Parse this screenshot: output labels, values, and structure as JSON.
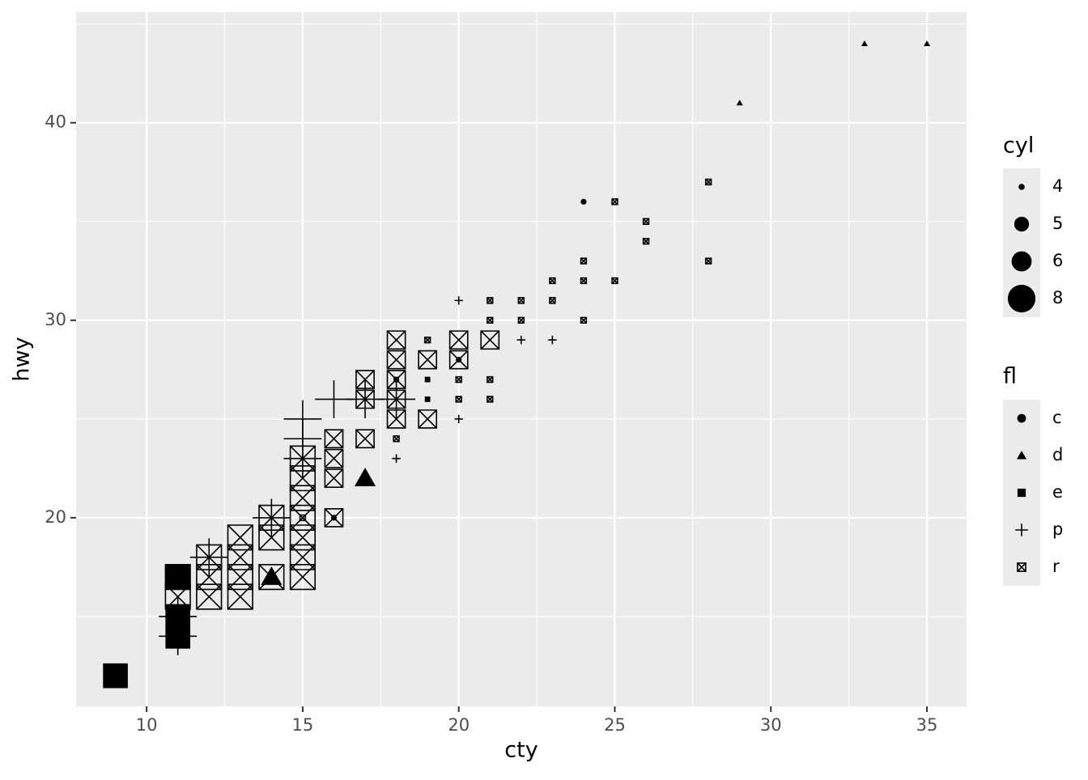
{
  "chart_data": {
    "type": "scatter",
    "x_label": "cty",
    "y_label": "hwy",
    "xlim": [
      7.74,
      36.27
    ],
    "ylim": [
      10.45,
      45.6
    ],
    "xticks": [
      10,
      15,
      20,
      25,
      30,
      35
    ],
    "yticks": [
      20,
      30,
      40
    ],
    "grid": true,
    "x": [
      33,
      35,
      29,
      28,
      24,
      25,
      26,
      26,
      28,
      24,
      23,
      24,
      25,
      20,
      21,
      22,
      23,
      21,
      22,
      24,
      21,
      22,
      23,
      20,
      20,
      20,
      20,
      21,
      20,
      21,
      20,
      19,
      19,
      19,
      19,
      19,
      18,
      18,
      18,
      18,
      18,
      18,
      18,
      18,
      17,
      17,
      17,
      17,
      16,
      16,
      16,
      16,
      16,
      16,
      17,
      18,
      15,
      15,
      15,
      15,
      15,
      15,
      15,
      15,
      15,
      15,
      14,
      14,
      14,
      14,
      13,
      13,
      13,
      13,
      12,
      12,
      12,
      11,
      11,
      11,
      11,
      11,
      11,
      11,
      9,
      14,
      12,
      15
    ],
    "y": [
      44,
      44,
      41,
      37,
      36,
      36,
      35,
      34,
      33,
      33,
      32,
      32,
      32,
      31,
      31,
      31,
      31,
      30,
      30,
      30,
      29,
      29,
      29,
      29,
      28,
      28,
      27,
      27,
      26,
      26,
      25,
      29,
      28,
      27,
      26,
      25,
      29,
      28,
      27,
      26,
      25,
      24,
      23,
      27,
      27,
      26,
      24,
      22,
      24,
      23,
      22,
      20,
      20,
      26,
      26,
      26,
      25,
      24,
      23,
      22,
      21,
      20,
      19,
      18,
      17,
      20,
      20,
      19,
      17,
      17,
      19,
      18,
      17,
      16,
      18,
      17,
      16,
      17,
      16,
      17,
      15,
      14,
      15,
      14,
      12,
      20,
      18,
      23
    ],
    "cyl": [
      4,
      4,
      4,
      4,
      4,
      4,
      4,
      4,
      4,
      4,
      4,
      4,
      4,
      4,
      4,
      4,
      4,
      4,
      4,
      4,
      6,
      4,
      4,
      6,
      6,
      4,
      4,
      4,
      4,
      4,
      4,
      4,
      6,
      4,
      4,
      6,
      6,
      6,
      6,
      6,
      6,
      4,
      4,
      4,
      6,
      6,
      6,
      6,
      6,
      6,
      6,
      6,
      4,
      8,
      8,
      8,
      8,
      8,
      8,
      8,
      8,
      8,
      8,
      8,
      8,
      4,
      8,
      8,
      8,
      6,
      8,
      8,
      8,
      8,
      8,
      8,
      8,
      8,
      8,
      8,
      8,
      8,
      8,
      8,
      8,
      8,
      8,
      8
    ],
    "fl": [
      "d",
      "d",
      "d",
      "r",
      "c",
      "r",
      "r",
      "r",
      "r",
      "r",
      "r",
      "r",
      "r",
      "p",
      "r",
      "r",
      "r",
      "r",
      "r",
      "r",
      "r",
      "p",
      "p",
      "r",
      "r",
      "c",
      "r",
      "r",
      "r",
      "r",
      "p",
      "r",
      "r",
      "e",
      "e",
      "r",
      "r",
      "r",
      "r",
      "r",
      "r",
      "r",
      "p",
      "e",
      "r",
      "r",
      "r",
      "d",
      "r",
      "r",
      "r",
      "r",
      "c",
      "p",
      "p",
      "p",
      "p",
      "p",
      "r",
      "r",
      "r",
      "r",
      "r",
      "r",
      "r",
      "r",
      "r",
      "r",
      "r",
      "d",
      "r",
      "r",
      "r",
      "r",
      "r",
      "r",
      "r",
      "r",
      "r",
      "e",
      "e",
      "e",
      "p",
      "p",
      "e",
      "p",
      "p",
      "p"
    ],
    "size_legend": {
      "title": "cyl",
      "values": [
        4,
        5,
        6,
        8
      ]
    },
    "shape_legend": {
      "title": "fl",
      "values": [
        "c",
        "d",
        "e",
        "p",
        "r"
      ]
    }
  }
}
